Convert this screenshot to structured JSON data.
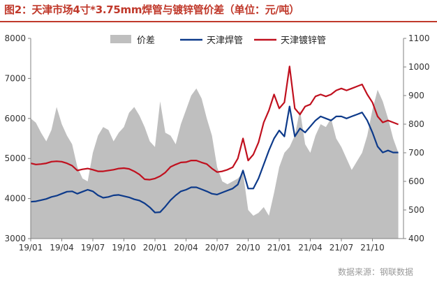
{
  "chart_data": {
    "type": "area+line",
    "title": "图2：天津市场4寸*3.75mm焊管与镀锌管价差（单位：元/吨）",
    "source": "数据来源：钢联数据",
    "x_tick_labels": [
      "19/01",
      "19/04",
      "19/07",
      "19/10",
      "20/01",
      "20/04",
      "20/07",
      "20/10",
      "21/01",
      "21/04",
      "21/07",
      "21/10"
    ],
    "ylim_left": [
      3000,
      8000
    ],
    "yticks_left": [
      3000,
      4000,
      5000,
      6000,
      7000,
      8000
    ],
    "ylim_right": [
      400,
      1100
    ],
    "yticks_right": [
      400,
      500,
      600,
      700,
      800,
      900,
      1000,
      1100
    ],
    "legend_position": "top-center",
    "grid": false,
    "x_months": [
      0,
      0.5,
      1,
      1.5,
      2,
      2.5,
      3,
      3.5,
      4,
      4.5,
      5,
      5.5,
      6,
      6.5,
      7,
      7.5,
      8,
      8.5,
      9,
      9.5,
      10,
      10.5,
      11,
      11.5,
      12,
      12.5,
      13,
      13.5,
      14,
      14.5,
      15,
      15.5,
      16,
      16.5,
      17,
      17.5,
      18,
      18.5,
      19,
      19.5,
      20,
      20.5,
      21,
      21.5,
      22,
      22.5,
      23,
      23.5,
      24,
      24.5,
      25,
      25.5,
      26,
      26.5,
      27,
      27.5,
      28,
      28.5,
      29,
      29.5,
      30,
      30.5,
      31,
      31.5,
      32,
      32.5,
      33,
      33.5,
      34,
      34.5,
      35,
      35.5
    ],
    "series": [
      {
        "name": "价差",
        "type": "area",
        "axis": "right",
        "color": "#bfbfbf",
        "values": [
          820,
          805,
          770,
          740,
          780,
          860,
          800,
          760,
          730,
          650,
          610,
          600,
          700,
          760,
          790,
          780,
          740,
          770,
          790,
          840,
          860,
          830,
          790,
          740,
          720,
          880,
          770,
          760,
          730,
          800,
          850,
          900,
          925,
          890,
          820,
          760,
          650,
          600,
          590,
          600,
          610,
          630,
          500,
          480,
          490,
          510,
          480,
          560,
          650,
          700,
          720,
          760,
          850,
          730,
          700,
          760,
          800,
          790,
          820,
          750,
          720,
          680,
          640,
          670,
          700,
          760,
          850,
          920,
          880,
          820,
          750,
          700
        ]
      },
      {
        "name": "天津焊管",
        "type": "line",
        "axis": "left",
        "color": "#0d3a8a",
        "values": [
          3920,
          3930,
          3960,
          3990,
          4040,
          4070,
          4120,
          4170,
          4180,
          4120,
          4170,
          4220,
          4180,
          4080,
          4020,
          4040,
          4080,
          4090,
          4060,
          4030,
          3980,
          3950,
          3880,
          3780,
          3650,
          3660,
          3800,
          3960,
          4080,
          4180,
          4220,
          4280,
          4280,
          4230,
          4180,
          4120,
          4100,
          4150,
          4200,
          4250,
          4350,
          4700,
          4250,
          4250,
          4500,
          4850,
          5200,
          5500,
          5700,
          5550,
          6300,
          5550,
          5750,
          5650,
          5800,
          5950,
          6050,
          6000,
          5950,
          6050,
          6050,
          6000,
          6050,
          6100,
          6150,
          5950,
          5650,
          5300,
          5150,
          5200,
          5150,
          5150
        ]
      },
      {
        "name": "天津镀锌管",
        "type": "line",
        "axis": "left",
        "color": "#c0101e",
        "values": [
          4880,
          4850,
          4860,
          4880,
          4920,
          4930,
          4920,
          4880,
          4820,
          4700,
          4730,
          4750,
          4720,
          4680,
          4680,
          4700,
          4720,
          4750,
          4760,
          4740,
          4680,
          4600,
          4480,
          4470,
          4500,
          4560,
          4650,
          4790,
          4850,
          4900,
          4910,
          4950,
          4950,
          4900,
          4860,
          4750,
          4660,
          4680,
          4720,
          4780,
          5000,
          5500,
          4950,
          5100,
          5400,
          5900,
          6200,
          6600,
          6250,
          6400,
          7300,
          6250,
          6100,
          6300,
          6350,
          6550,
          6600,
          6550,
          6600,
          6700,
          6750,
          6700,
          6750,
          6800,
          6850,
          6600,
          6400,
          6050,
          5900,
          5950,
          5900,
          5850
        ]
      }
    ]
  }
}
